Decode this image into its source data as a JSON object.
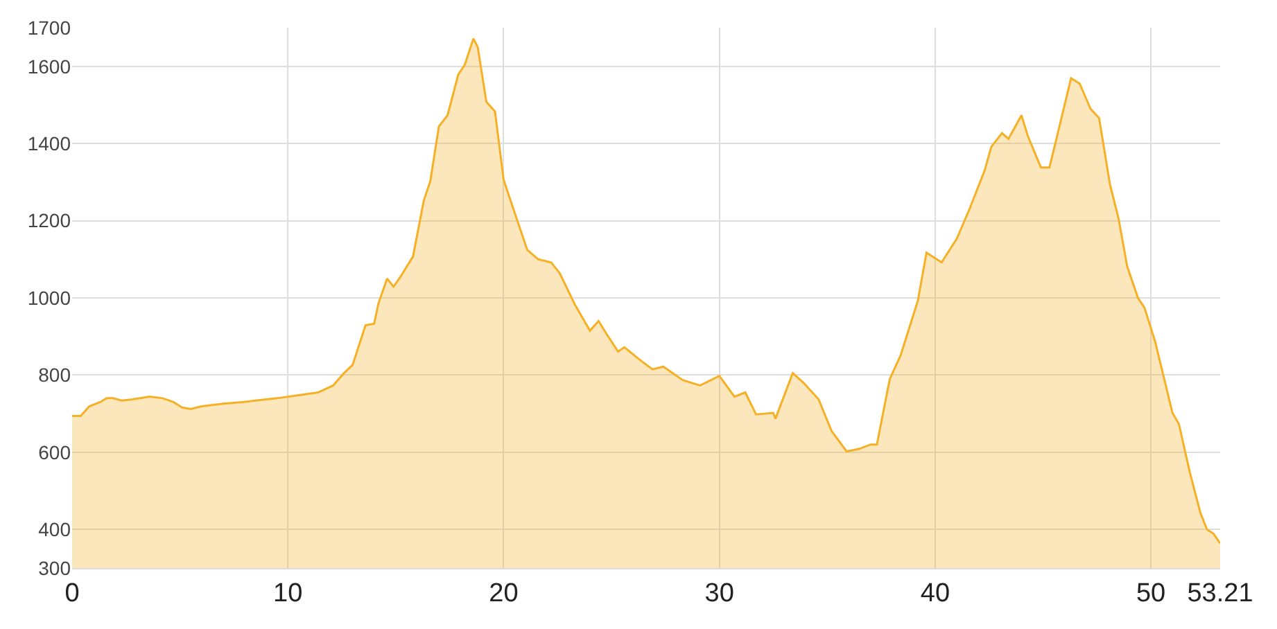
{
  "chart_data": {
    "type": "area",
    "grid": true,
    "marker": "none",
    "line_style": "solid",
    "xlim": [
      0,
      53.21
    ],
    "xticks": [
      0,
      10,
      20,
      30,
      40,
      50,
      53.21
    ],
    "ylim": [
      300,
      1700
    ],
    "yticks": [
      300,
      400,
      600,
      800,
      1000,
      1200,
      1400,
      1600,
      1700
    ],
    "series": [
      {
        "color": "#f5b025",
        "x": [
          0,
          0.4,
          0.8,
          1.3,
          1.6,
          1.9,
          2.3,
          2.8,
          3.6,
          4.2,
          4.7,
          5.1,
          5.5,
          6.0,
          7.0,
          7.9,
          8.5,
          9.5,
          10.5,
          11.4,
          12.1,
          12.6,
          13.0,
          13.6,
          14.0,
          14.2,
          14.6,
          14.9,
          15.2,
          15.8,
          16.3,
          16.6,
          17.0,
          17.4,
          17.9,
          18.2,
          18.6,
          18.8,
          19.2,
          19.6,
          20.0,
          20.6,
          21.1,
          21.6,
          22.2,
          22.6,
          23.3,
          24.0,
          24.4,
          24.8,
          25.3,
          25.6,
          26.3,
          26.9,
          27.4,
          28.3,
          29.1,
          30.0,
          30.7,
          31.2,
          31.7,
          32.5,
          32.6,
          33.4,
          33.9,
          34.6,
          35.2,
          35.9,
          36.5,
          37.0,
          37.3,
          37.9,
          38.4,
          39.2,
          39.6,
          40.3,
          41.0,
          41.6,
          42.3,
          42.6,
          43.1,
          43.4,
          44.0,
          44.3,
          44.9,
          45.3,
          46.3,
          46.7,
          47.2,
          47.6,
          48.1,
          48.5,
          48.9,
          49.4,
          49.7,
          50.2,
          51.0,
          51.3,
          51.8,
          52.3,
          52.6,
          52.9,
          53.21
        ],
        "values": [
          694,
          694,
          719,
          730,
          740,
          740,
          734,
          737,
          744,
          740,
          730,
          716,
          712,
          719,
          726,
          730,
          734,
          740,
          748,
          755,
          773,
          805,
          826,
          929,
          933,
          986,
          1050,
          1029,
          1053,
          1107,
          1252,
          1302,
          1444,
          1473,
          1579,
          1604,
          1672,
          1650,
          1508,
          1483,
          1306,
          1206,
          1124,
          1100,
          1092,
          1064,
          983,
          915,
          940,
          904,
          861,
          872,
          840,
          815,
          822,
          787,
          773,
          798,
          744,
          755,
          698,
          702,
          687,
          805,
          780,
          737,
          655,
          602,
          609,
          620,
          620,
          790,
          851,
          993,
          1117,
          1092,
          1153,
          1231,
          1331,
          1391,
          1427,
          1412,
          1473,
          1419,
          1338,
          1338,
          1569,
          1555,
          1490,
          1466,
          1295,
          1206,
          1082,
          1000,
          975,
          886,
          702,
          673,
          549,
          442,
          400,
          389,
          364
        ]
      }
    ]
  }
}
